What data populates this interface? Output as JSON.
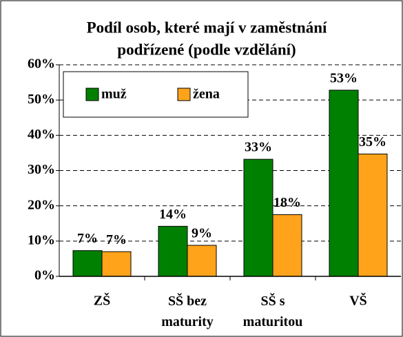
{
  "chart_data": {
    "type": "bar",
    "title": [
      "Podíl osob, které mají v zaměstnání",
      "podřízené (podle vzdělání)"
    ],
    "categories": [
      "ZŠ",
      "SŠ bez maturity",
      "SŠ s maturitou",
      "VŠ"
    ],
    "series": [
      {
        "name": "muž",
        "color": "#008000",
        "values": [
          7.3,
          14.2,
          33.2,
          52.8
        ],
        "value_labels": [
          "7%",
          "14%",
          "33%",
          "53%"
        ]
      },
      {
        "name": "žena",
        "color": "#ffa31a",
        "values": [
          7.0,
          8.8,
          17.5,
          34.7
        ],
        "value_labels": [
          "7%",
          "9%",
          "18%",
          "35%"
        ]
      }
    ],
    "ylim": [
      0,
      60
    ],
    "yticks": [
      {
        "value": 0,
        "label": "0%"
      },
      {
        "value": 10,
        "label": "10%"
      },
      {
        "value": 20,
        "label": "20%"
      },
      {
        "value": 30,
        "label": "30%"
      },
      {
        "value": 40,
        "label": "40%"
      },
      {
        "value": 50,
        "label": "50%"
      },
      {
        "value": 60,
        "label": "60%"
      }
    ],
    "grid": true,
    "legend": "top-left"
  }
}
